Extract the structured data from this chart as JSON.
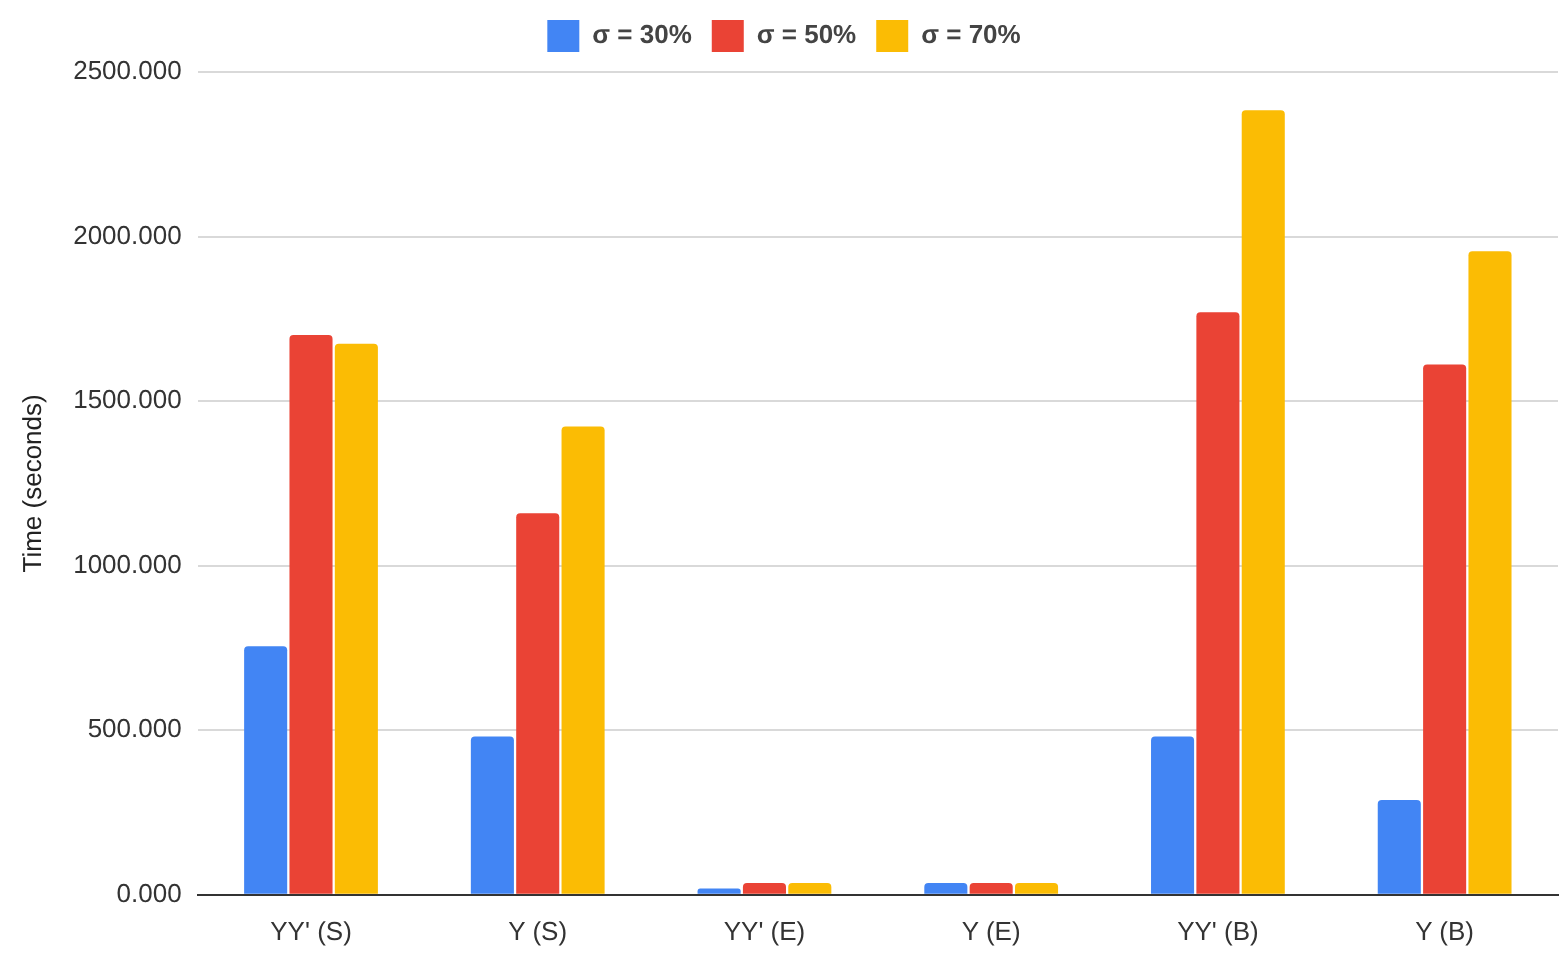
{
  "chart_data": {
    "type": "bar",
    "ylabel": "Time (seconds)",
    "categories": [
      "YY' (S)",
      "Y (S)",
      "YY' (E)",
      "Y (E)",
      "YY' (B)",
      "Y (B)"
    ],
    "series": [
      {
        "name": "σ = 30%",
        "color": "#4285f4",
        "values": [
          755,
          481,
          19,
          36,
          481,
          288
        ]
      },
      {
        "name": "σ = 50%",
        "color": "#ea4335",
        "values": [
          1701,
          1159,
          36,
          36,
          1770,
          1611
        ]
      },
      {
        "name": "σ = 70%",
        "color": "#fbbc04",
        "values": [
          1674,
          1423,
          36,
          36,
          2384,
          1955
        ]
      }
    ],
    "ylim": [
      0,
      2500
    ],
    "yticks": [
      {
        "value": 0,
        "label": "0.000"
      },
      {
        "value": 500,
        "label": "500.000"
      },
      {
        "value": 1000,
        "label": "1000.000"
      },
      {
        "value": 1500,
        "label": "1500.000"
      },
      {
        "value": 2000,
        "label": "2000.000"
      },
      {
        "value": 2500,
        "label": "2500.000"
      }
    ],
    "grid": "y",
    "legend": "top"
  }
}
